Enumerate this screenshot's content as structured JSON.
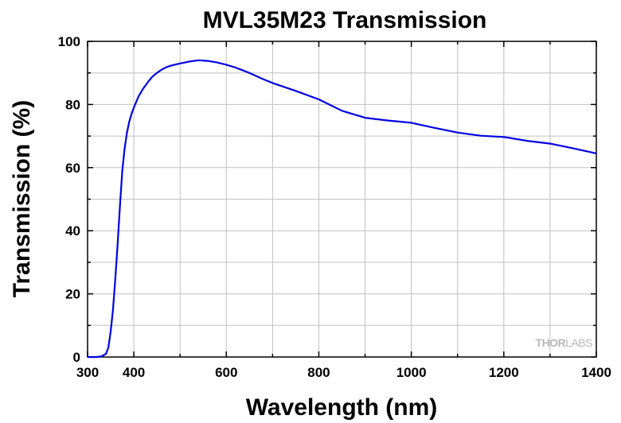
{
  "chart_data": {
    "type": "line",
    "title": "MVL35M23 Transmission",
    "xlabel": "Wavelength (nm)",
    "ylabel": "Transmission (%)",
    "xlim": [
      300,
      1400
    ],
    "ylim": [
      0,
      100
    ],
    "xticks": [
      300,
      400,
      600,
      800,
      1000,
      1200,
      1400
    ],
    "yticks": [
      0,
      20,
      40,
      60,
      80,
      100
    ],
    "grid": true,
    "series": [
      {
        "color": "#0000e0",
        "x": [
          300,
          310,
          320,
          330,
          340,
          345,
          350,
          355,
          360,
          365,
          370,
          375,
          380,
          385,
          390,
          395,
          400,
          410,
          420,
          430,
          440,
          450,
          460,
          470,
          480,
          500,
          520,
          540,
          560,
          580,
          600,
          620,
          650,
          680,
          700,
          750,
          800,
          850,
          900,
          950,
          1000,
          1050,
          1100,
          1150,
          1200,
          1250,
          1300,
          1350,
          1400
        ],
        "y": [
          0,
          0,
          0,
          0.2,
          1,
          3,
          8,
          15,
          25,
          36,
          48,
          59,
          66,
          71,
          74.5,
          77,
          79,
          82.5,
          85,
          87,
          88.8,
          90,
          91,
          91.8,
          92.3,
          93,
          93.6,
          94,
          93.8,
          93.3,
          92.6,
          91.7,
          90,
          88,
          86.8,
          84.3,
          81.6,
          78,
          75.8,
          74.9,
          74.2,
          72.6,
          71.1,
          70.1,
          69.7,
          68.5,
          67.6,
          66.1,
          64.5
        ]
      }
    ]
  },
  "logo": {
    "part1": "THOR",
    "part2": "LABS"
  }
}
